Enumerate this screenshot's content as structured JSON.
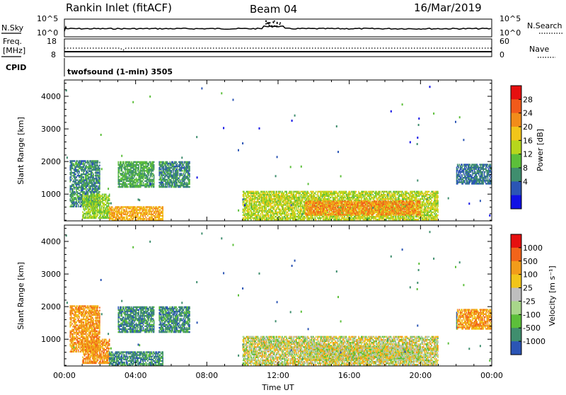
{
  "header": {
    "station": "Rankin Inlet (fitACF)",
    "beam": "Beam 04",
    "date": "16/Mar/2019"
  },
  "top_panels": {
    "nsky_label": "N.Sky",
    "nsky_ticks": [
      "10^5",
      "10^0"
    ],
    "nsearch_label": "N.Search",
    "nsearch_ticks": [
      "10^5",
      "10^0"
    ],
    "freq_label_1": "Freq.",
    "freq_label_2": "[MHz]",
    "freq_ticks": [
      "18",
      "8"
    ],
    "nave_label": "Nave",
    "nave_ticks": [
      "60",
      "0"
    ],
    "cpid_label": "CPID",
    "cpid_text": "twofsound (1-min) 3505"
  },
  "colors": {
    "power_scale": [
      "#1010e6",
      "#2b55b5",
      "#3f8e6e",
      "#5cbf3a",
      "#b7d61c",
      "#f2c51a",
      "#f28c1a",
      "#f25a1a",
      "#e61010"
    ],
    "velocity_scale": [
      "#2b55b5",
      "#3f8e6e",
      "#5cbf3a",
      "#a8d68a",
      "#bebebe",
      "#f2c51a",
      "#f29c1a",
      "#f2641a",
      "#e61010"
    ]
  },
  "chart_data": [
    {
      "type": "heatmap",
      "name_panel": "power",
      "ylabel": "Slant Range [km]",
      "ylim": [
        180,
        4500
      ],
      "yticks": [
        1000,
        2000,
        3000,
        4000
      ],
      "xlim_hours": [
        0,
        24
      ],
      "colorbar": {
        "label": "Power [dB]",
        "ticks": [
          "28",
          "24",
          "20",
          "16",
          "12",
          "8",
          "4"
        ],
        "range": [
          0,
          32
        ]
      },
      "echo_regions": [
        {
          "t0": 0.3,
          "t1": 2.0,
          "r0": 600,
          "r1": 2000,
          "level": 12
        },
        {
          "t0": 1.0,
          "t1": 2.5,
          "r0": 250,
          "r1": 1000,
          "level": 18
        },
        {
          "t0": 2.5,
          "t1": 5.5,
          "r0": 180,
          "r1": 600,
          "level": 26
        },
        {
          "t0": 3.0,
          "t1": 5.0,
          "r0": 1200,
          "r1": 2000,
          "level": 14
        },
        {
          "t0": 5.3,
          "t1": 7.0,
          "r0": 1200,
          "r1": 2000,
          "level": 12
        },
        {
          "t0": 10.0,
          "t1": 21.0,
          "r0": 200,
          "r1": 1100,
          "level": 20
        },
        {
          "t0": 13.5,
          "t1": 20.0,
          "r0": 350,
          "r1": 800,
          "level": 28
        },
        {
          "t0": 22.0,
          "t1": 24.0,
          "r0": 1300,
          "r1": 1900,
          "level": 10
        }
      ]
    },
    {
      "type": "heatmap",
      "name_panel": "velocity",
      "ylabel": "Slant Range [km]",
      "xlabel": "Time UT",
      "ylim": [
        180,
        4500
      ],
      "yticks": [
        1000,
        2000,
        3000,
        4000
      ],
      "xlim_hours": [
        0,
        24
      ],
      "xticks": [
        "00:00",
        "04:00",
        "08:00",
        "12:00",
        "16:00",
        "20:00",
        "00:00"
      ],
      "colorbar": {
        "label": "Velocity [m s⁻¹]",
        "ticks": [
          "1000",
          "500",
          "100",
          "25",
          "-25",
          "-100",
          "-500",
          "-1000"
        ]
      }
    }
  ]
}
